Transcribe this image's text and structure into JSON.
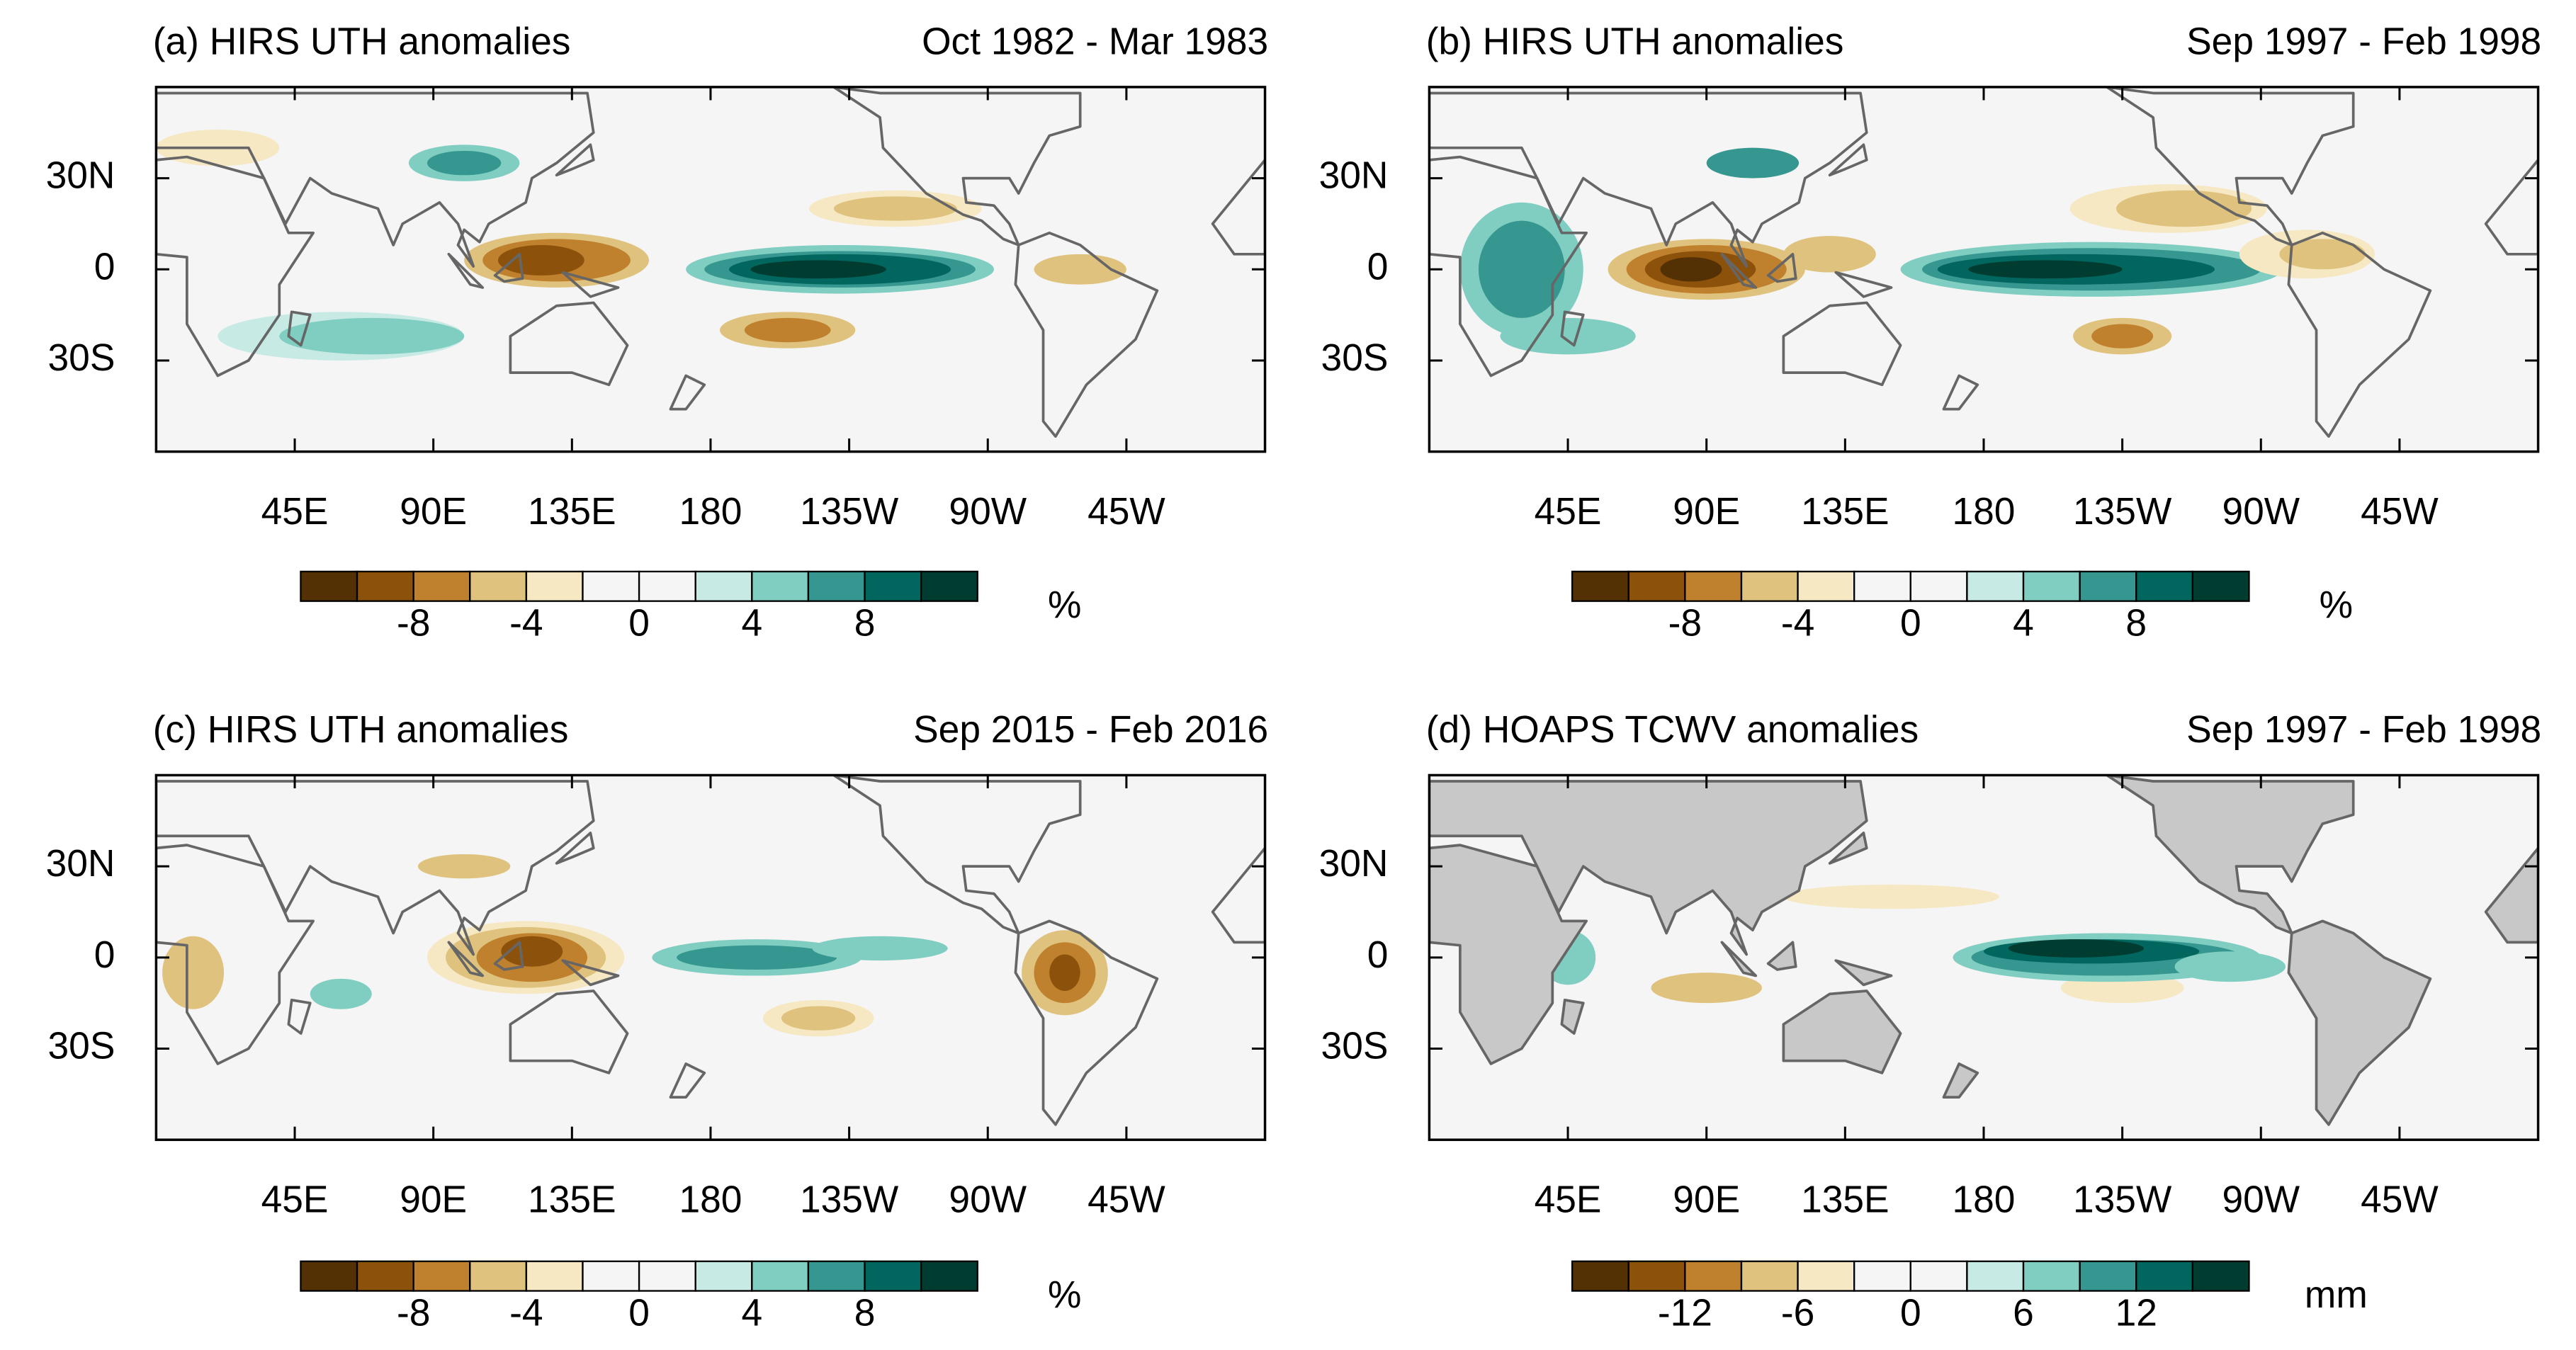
{
  "panels": [
    {
      "title": "(a) HIRS UTH anomalies",
      "period": "Oct 1982 - Mar 1983",
      "xlim": [
        0,
        360
      ],
      "ylim": [
        -60,
        60
      ],
      "xticks": [
        {
          "value": 45,
          "label": "45E"
        },
        {
          "value": 90,
          "label": "90E"
        },
        {
          "value": 135,
          "label": "135E"
        },
        180,
        {
          "value": 225,
          "label": "135W"
        },
        {
          "value": 270,
          "label": "90W"
        },
        {
          "value": 315,
          "label": "45W"
        }
      ],
      "yticks": [
        {
          "value": 30,
          "label": "30N"
        },
        0,
        {
          "value": -30,
          "label": "30S"
        }
      ],
      "colorbar": {
        "colors": [
          "#543005",
          "#8c510a",
          "#bf812d",
          "#dfc27d",
          "#f6e8c3",
          "#f5f5f5",
          "#f5f5f5",
          "#c7eae5",
          "#80cdc1",
          "#35978f",
          "#01665e",
          "#003c30"
        ],
        "lim": [
          -12,
          12
        ],
        "ticks": [
          -8,
          -4,
          0,
          4,
          8
        ],
        "unit": "%"
      }
    },
    {
      "title": "(b) HIRS UTH anomalies",
      "period": "Sep 1997 - Feb 1998",
      "xlim": [
        0,
        360
      ],
      "ylim": [
        -60,
        60
      ],
      "xticks": [
        {
          "value": 45,
          "label": "45E"
        },
        {
          "value": 90,
          "label": "90E"
        },
        {
          "value": 135,
          "label": "135E"
        },
        180,
        {
          "value": 225,
          "label": "135W"
        },
        {
          "value": 270,
          "label": "90W"
        },
        {
          "value": 315,
          "label": "45W"
        }
      ],
      "yticks": [
        {
          "value": 30,
          "label": "30N"
        },
        0,
        {
          "value": -30,
          "label": "30S"
        }
      ],
      "colorbar": {
        "colors": [
          "#543005",
          "#8c510a",
          "#bf812d",
          "#dfc27d",
          "#f6e8c3",
          "#f5f5f5",
          "#f5f5f5",
          "#c7eae5",
          "#80cdc1",
          "#35978f",
          "#01665e",
          "#003c30"
        ],
        "lim": [
          -12,
          12
        ],
        "ticks": [
          -8,
          -4,
          0,
          4,
          8
        ],
        "unit": "%"
      }
    },
    {
      "title": "(c) HIRS UTH anomalies",
      "period": "Sep 2015 - Feb 2016",
      "xlim": [
        0,
        360
      ],
      "ylim": [
        -60,
        60
      ],
      "xticks": [
        {
          "value": 45,
          "label": "45E"
        },
        {
          "value": 90,
          "label": "90E"
        },
        {
          "value": 135,
          "label": "135E"
        },
        180,
        {
          "value": 225,
          "label": "135W"
        },
        {
          "value": 270,
          "label": "90W"
        },
        {
          "value": 315,
          "label": "45W"
        }
      ],
      "yticks": [
        {
          "value": 30,
          "label": "30N"
        },
        0,
        {
          "value": -30,
          "label": "30S"
        }
      ],
      "colorbar": {
        "colors": [
          "#543005",
          "#8c510a",
          "#bf812d",
          "#dfc27d",
          "#f6e8c3",
          "#f5f5f5",
          "#f5f5f5",
          "#c7eae5",
          "#80cdc1",
          "#35978f",
          "#01665e",
          "#003c30"
        ],
        "lim": [
          -12,
          12
        ],
        "ticks": [
          -8,
          -4,
          0,
          4,
          8
        ],
        "unit": "%"
      }
    },
    {
      "title": "(d) HOAPS TCWV anomalies",
      "period": "Sep 1997 - Feb 1998",
      "xlim": [
        0,
        360
      ],
      "ylim": [
        -60,
        60
      ],
      "land_mask": true,
      "xticks": [
        {
          "value": 45,
          "label": "45E"
        },
        {
          "value": 90,
          "label": "90E"
        },
        {
          "value": 135,
          "label": "135E"
        },
        180,
        {
          "value": 225,
          "label": "135W"
        },
        {
          "value": 270,
          "label": "90W"
        },
        {
          "value": 315,
          "label": "45W"
        }
      ],
      "yticks": [
        {
          "value": 30,
          "label": "30N"
        },
        0,
        {
          "value": -30,
          "label": "30S"
        }
      ],
      "colorbar": {
        "colors": [
          "#543005",
          "#8c510a",
          "#bf812d",
          "#dfc27d",
          "#f6e8c3",
          "#f5f5f5",
          "#f5f5f5",
          "#c7eae5",
          "#80cdc1",
          "#35978f",
          "#01665e",
          "#003c30"
        ],
        "lim": [
          -18,
          18
        ],
        "ticks": [
          -12,
          -6,
          0,
          6,
          12
        ],
        "unit": "mm"
      }
    }
  ]
}
